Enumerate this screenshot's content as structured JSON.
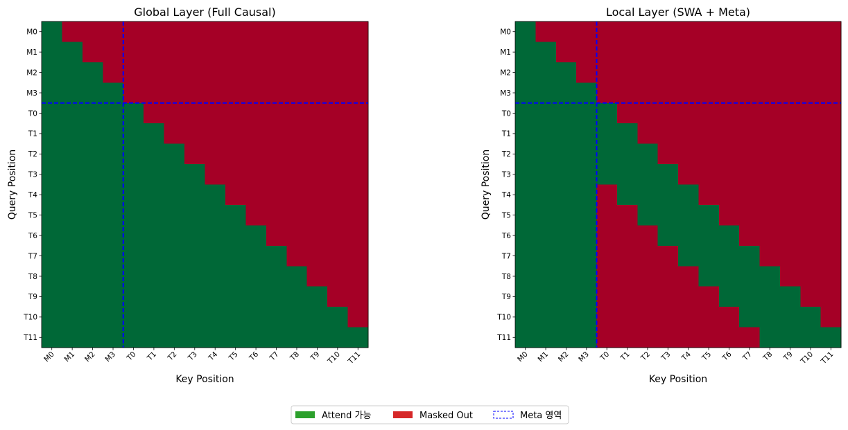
{
  "chart_data": [
    {
      "type": "heatmap",
      "title": "Global Layer (Full Causal)",
      "xlabel": "Key Position",
      "ylabel": "Query Position",
      "x_categories": [
        "M0",
        "M1",
        "M2",
        "M3",
        "T0",
        "T1",
        "T2",
        "T3",
        "T4",
        "T5",
        "T6",
        "T7",
        "T8",
        "T9",
        "T10",
        "T11"
      ],
      "y_categories": [
        "M0",
        "M1",
        "M2",
        "M3",
        "T0",
        "T1",
        "T2",
        "T3",
        "T4",
        "T5",
        "T6",
        "T7",
        "T8",
        "T9",
        "T10",
        "T11"
      ],
      "meta_boundary_after": 3,
      "matrix": [
        [
          1,
          0,
          0,
          0,
          0,
          0,
          0,
          0,
          0,
          0,
          0,
          0,
          0,
          0,
          0,
          0
        ],
        [
          1,
          1,
          0,
          0,
          0,
          0,
          0,
          0,
          0,
          0,
          0,
          0,
          0,
          0,
          0,
          0
        ],
        [
          1,
          1,
          1,
          0,
          0,
          0,
          0,
          0,
          0,
          0,
          0,
          0,
          0,
          0,
          0,
          0
        ],
        [
          1,
          1,
          1,
          1,
          0,
          0,
          0,
          0,
          0,
          0,
          0,
          0,
          0,
          0,
          0,
          0
        ],
        [
          1,
          1,
          1,
          1,
          1,
          0,
          0,
          0,
          0,
          0,
          0,
          0,
          0,
          0,
          0,
          0
        ],
        [
          1,
          1,
          1,
          1,
          1,
          1,
          0,
          0,
          0,
          0,
          0,
          0,
          0,
          0,
          0,
          0
        ],
        [
          1,
          1,
          1,
          1,
          1,
          1,
          1,
          0,
          0,
          0,
          0,
          0,
          0,
          0,
          0,
          0
        ],
        [
          1,
          1,
          1,
          1,
          1,
          1,
          1,
          1,
          0,
          0,
          0,
          0,
          0,
          0,
          0,
          0
        ],
        [
          1,
          1,
          1,
          1,
          1,
          1,
          1,
          1,
          1,
          0,
          0,
          0,
          0,
          0,
          0,
          0
        ],
        [
          1,
          1,
          1,
          1,
          1,
          1,
          1,
          1,
          1,
          1,
          0,
          0,
          0,
          0,
          0,
          0
        ],
        [
          1,
          1,
          1,
          1,
          1,
          1,
          1,
          1,
          1,
          1,
          1,
          0,
          0,
          0,
          0,
          0
        ],
        [
          1,
          1,
          1,
          1,
          1,
          1,
          1,
          1,
          1,
          1,
          1,
          1,
          0,
          0,
          0,
          0
        ],
        [
          1,
          1,
          1,
          1,
          1,
          1,
          1,
          1,
          1,
          1,
          1,
          1,
          1,
          0,
          0,
          0
        ],
        [
          1,
          1,
          1,
          1,
          1,
          1,
          1,
          1,
          1,
          1,
          1,
          1,
          1,
          1,
          0,
          0
        ],
        [
          1,
          1,
          1,
          1,
          1,
          1,
          1,
          1,
          1,
          1,
          1,
          1,
          1,
          1,
          1,
          0
        ],
        [
          1,
          1,
          1,
          1,
          1,
          1,
          1,
          1,
          1,
          1,
          1,
          1,
          1,
          1,
          1,
          1
        ]
      ]
    },
    {
      "type": "heatmap",
      "title": "Local Layer (SWA + Meta)",
      "xlabel": "Key Position",
      "ylabel": "Query Position",
      "x_categories": [
        "M0",
        "M1",
        "M2",
        "M3",
        "T0",
        "T1",
        "T2",
        "T3",
        "T4",
        "T5",
        "T6",
        "T7",
        "T8",
        "T9",
        "T10",
        "T11"
      ],
      "y_categories": [
        "M0",
        "M1",
        "M2",
        "M3",
        "T0",
        "T1",
        "T2",
        "T3",
        "T4",
        "T5",
        "T6",
        "T7",
        "T8",
        "T9",
        "T10",
        "T11"
      ],
      "meta_boundary_after": 3,
      "matrix": [
        [
          1,
          0,
          0,
          0,
          0,
          0,
          0,
          0,
          0,
          0,
          0,
          0,
          0,
          0,
          0,
          0
        ],
        [
          1,
          1,
          0,
          0,
          0,
          0,
          0,
          0,
          0,
          0,
          0,
          0,
          0,
          0,
          0,
          0
        ],
        [
          1,
          1,
          1,
          0,
          0,
          0,
          0,
          0,
          0,
          0,
          0,
          0,
          0,
          0,
          0,
          0
        ],
        [
          1,
          1,
          1,
          1,
          0,
          0,
          0,
          0,
          0,
          0,
          0,
          0,
          0,
          0,
          0,
          0
        ],
        [
          1,
          1,
          1,
          1,
          1,
          0,
          0,
          0,
          0,
          0,
          0,
          0,
          0,
          0,
          0,
          0
        ],
        [
          1,
          1,
          1,
          1,
          1,
          1,
          0,
          0,
          0,
          0,
          0,
          0,
          0,
          0,
          0,
          0
        ],
        [
          1,
          1,
          1,
          1,
          1,
          1,
          1,
          0,
          0,
          0,
          0,
          0,
          0,
          0,
          0,
          0
        ],
        [
          1,
          1,
          1,
          1,
          1,
          1,
          1,
          1,
          0,
          0,
          0,
          0,
          0,
          0,
          0,
          0
        ],
        [
          1,
          1,
          1,
          1,
          0,
          1,
          1,
          1,
          1,
          0,
          0,
          0,
          0,
          0,
          0,
          0
        ],
        [
          1,
          1,
          1,
          1,
          0,
          0,
          1,
          1,
          1,
          1,
          0,
          0,
          0,
          0,
          0,
          0
        ],
        [
          1,
          1,
          1,
          1,
          0,
          0,
          0,
          1,
          1,
          1,
          1,
          0,
          0,
          0,
          0,
          0
        ],
        [
          1,
          1,
          1,
          1,
          0,
          0,
          0,
          0,
          1,
          1,
          1,
          1,
          0,
          0,
          0,
          0
        ],
        [
          1,
          1,
          1,
          1,
          0,
          0,
          0,
          0,
          0,
          1,
          1,
          1,
          1,
          0,
          0,
          0
        ],
        [
          1,
          1,
          1,
          1,
          0,
          0,
          0,
          0,
          0,
          0,
          1,
          1,
          1,
          1,
          0,
          0
        ],
        [
          1,
          1,
          1,
          1,
          0,
          0,
          0,
          0,
          0,
          0,
          0,
          1,
          1,
          1,
          1,
          0
        ],
        [
          1,
          1,
          1,
          1,
          0,
          0,
          0,
          0,
          0,
          0,
          0,
          0,
          1,
          1,
          1,
          1
        ]
      ]
    }
  ],
  "legend": {
    "placement": "bottom-center",
    "items": [
      {
        "label": "Attend 가능",
        "swatch": "filled",
        "color": "#2ca02c"
      },
      {
        "label": "Masked Out",
        "swatch": "filled",
        "color": "#d62728"
      },
      {
        "label": "Meta 영역",
        "swatch": "dashed",
        "color": "#0000ff"
      }
    ]
  },
  "colors": {
    "attend": "#006837",
    "masked": "#a50026",
    "meta_line": "#0000ff"
  }
}
